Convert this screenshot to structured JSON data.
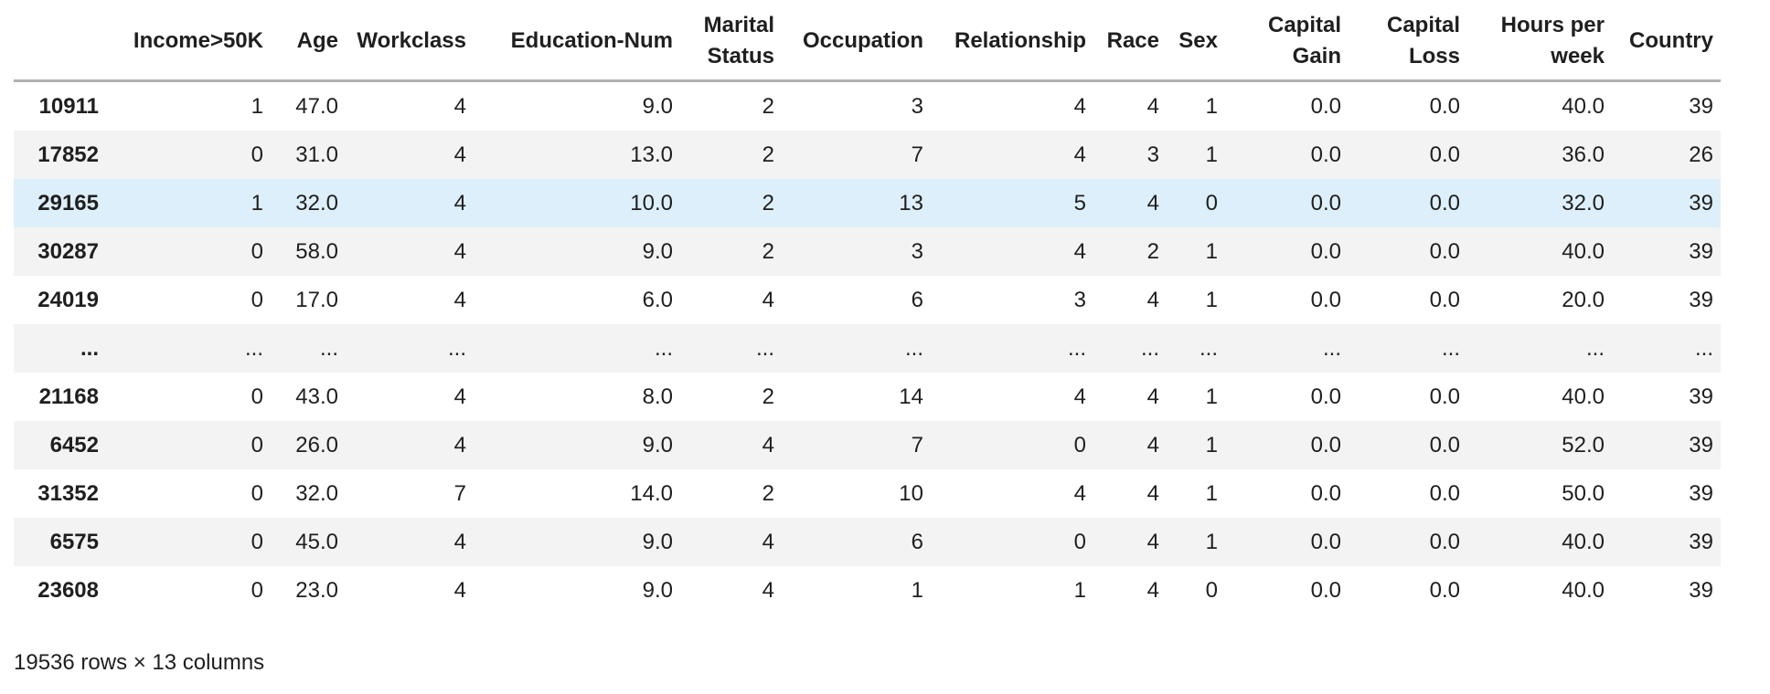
{
  "table": {
    "index_header": "",
    "columns": [
      "Income>50K",
      "Age",
      "Workclass",
      "Education-Num",
      "Marital Status",
      "Occupation",
      "Relationship",
      "Race",
      "Sex",
      "Capital Gain",
      "Capital Loss",
      "Hours per week",
      "Country"
    ],
    "rows": [
      {
        "index": "10911",
        "highlight": false,
        "cells": [
          "1",
          "47.0",
          "4",
          "9.0",
          "2",
          "3",
          "4",
          "4",
          "1",
          "0.0",
          "0.0",
          "40.0",
          "39"
        ]
      },
      {
        "index": "17852",
        "highlight": false,
        "cells": [
          "0",
          "31.0",
          "4",
          "13.0",
          "2",
          "7",
          "4",
          "3",
          "1",
          "0.0",
          "0.0",
          "36.0",
          "26"
        ]
      },
      {
        "index": "29165",
        "highlight": true,
        "cells": [
          "1",
          "32.0",
          "4",
          "10.0",
          "2",
          "13",
          "5",
          "4",
          "0",
          "0.0",
          "0.0",
          "32.0",
          "39"
        ]
      },
      {
        "index": "30287",
        "highlight": false,
        "cells": [
          "0",
          "58.0",
          "4",
          "9.0",
          "2",
          "3",
          "4",
          "2",
          "1",
          "0.0",
          "0.0",
          "40.0",
          "39"
        ]
      },
      {
        "index": "24019",
        "highlight": false,
        "cells": [
          "0",
          "17.0",
          "4",
          "6.0",
          "4",
          "6",
          "3",
          "4",
          "1",
          "0.0",
          "0.0",
          "20.0",
          "39"
        ]
      },
      {
        "index": "...",
        "highlight": false,
        "cells": [
          "...",
          "...",
          "...",
          "...",
          "...",
          "...",
          "...",
          "...",
          "...",
          "...",
          "...",
          "...",
          "..."
        ]
      },
      {
        "index": "21168",
        "highlight": false,
        "cells": [
          "0",
          "43.0",
          "4",
          "8.0",
          "2",
          "14",
          "4",
          "4",
          "1",
          "0.0",
          "0.0",
          "40.0",
          "39"
        ]
      },
      {
        "index": "6452",
        "highlight": false,
        "cells": [
          "0",
          "26.0",
          "4",
          "9.0",
          "4",
          "7",
          "0",
          "4",
          "1",
          "0.0",
          "0.0",
          "52.0",
          "39"
        ]
      },
      {
        "index": "31352",
        "highlight": false,
        "cells": [
          "0",
          "32.0",
          "7",
          "14.0",
          "2",
          "10",
          "4",
          "4",
          "1",
          "0.0",
          "0.0",
          "50.0",
          "39"
        ]
      },
      {
        "index": "6575",
        "highlight": false,
        "cells": [
          "0",
          "45.0",
          "4",
          "9.0",
          "4",
          "6",
          "0",
          "4",
          "1",
          "0.0",
          "0.0",
          "40.0",
          "39"
        ]
      },
      {
        "index": "23608",
        "highlight": false,
        "cells": [
          "0",
          "23.0",
          "4",
          "9.0",
          "4",
          "1",
          "1",
          "4",
          "0",
          "0.0",
          "0.0",
          "40.0",
          "39"
        ]
      }
    ]
  },
  "footer": {
    "summary": "19536 rows × 13 columns"
  },
  "colors": {
    "stripe_row": "#f3f3f3",
    "highlight_row": "#ddeffa",
    "header_rule": "#b0b0b0",
    "text": "#1f1f1f"
  }
}
